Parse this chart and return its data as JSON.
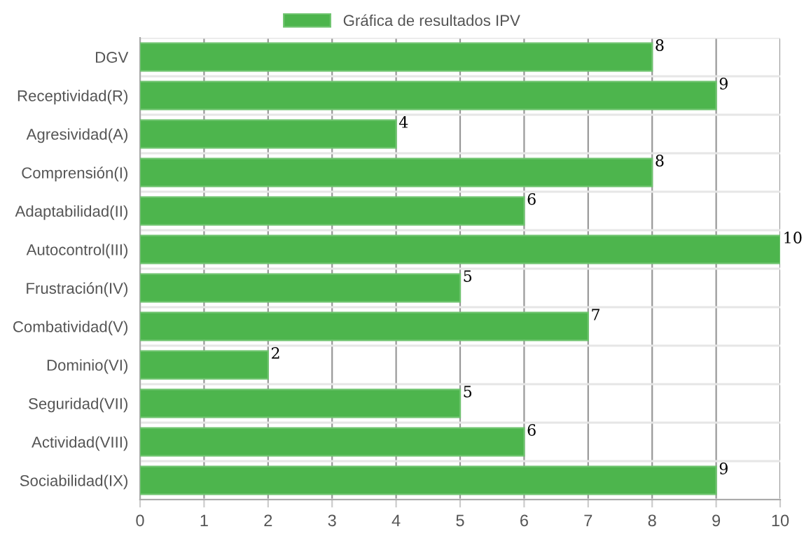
{
  "chart_data": {
    "type": "bar",
    "orientation": "horizontal",
    "categories": [
      "DGV",
      "Receptividad(R)",
      "Agresividad(A)",
      "Comprensión(I)",
      "Adaptabilidad(II)",
      "Autocontrol(III)",
      "Frustración(IV)",
      "Combatividad(V)",
      "Dominio(VI)",
      "Seguridad(VII)",
      "Actividad(VIII)",
      "Sociabilidad(IX)"
    ],
    "series": [
      {
        "name": "Gráfica de resultados IPV",
        "color": "#4db54d",
        "values": [
          8,
          9,
          4,
          8,
          6,
          10,
          5,
          7,
          2,
          5,
          6,
          9
        ]
      }
    ],
    "xlim": [
      0,
      10
    ],
    "xticks": [
      0,
      1,
      2,
      3,
      4,
      5,
      6,
      7,
      8,
      9,
      10
    ],
    "grid": true,
    "legend": "top",
    "data_labels": true
  }
}
